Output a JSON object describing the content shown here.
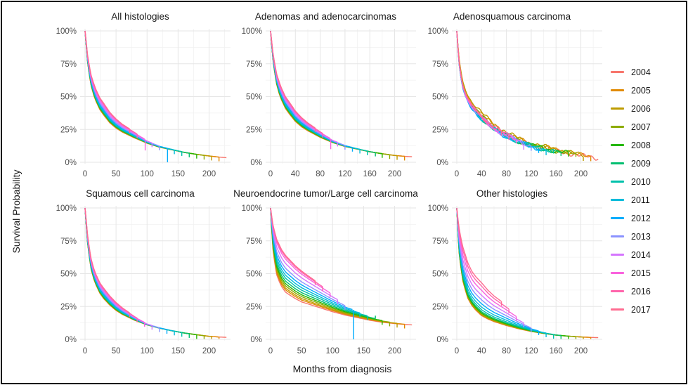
{
  "figure": {
    "ylabel": "Survival Probability",
    "xlabel": "Months from diagnosis",
    "colors": {
      "background": "#ffffff",
      "frame": "#0a0a0a",
      "grid_major": "#e6e6e6",
      "grid_minor": "#f2f2f2",
      "tick_text": "#4d4d4d",
      "title_text": "#1a1a1a"
    }
  },
  "legend": {
    "items": [
      {
        "label": "2004",
        "color": "#F8766D"
      },
      {
        "label": "2005",
        "color": "#E18A00"
      },
      {
        "label": "2006",
        "color": "#BE9C00"
      },
      {
        "label": "2007",
        "color": "#8CAB00"
      },
      {
        "label": "2008",
        "color": "#24B700"
      },
      {
        "label": "2009",
        "color": "#00BE70"
      },
      {
        "label": "2010",
        "color": "#00C1AB"
      },
      {
        "label": "2011",
        "color": "#00BBDA"
      },
      {
        "label": "2012",
        "color": "#00ACFC"
      },
      {
        "label": "2013",
        "color": "#8B93FF"
      },
      {
        "label": "2014",
        "color": "#D575FE"
      },
      {
        "label": "2015",
        "color": "#F962DD"
      },
      {
        "label": "2016",
        "color": "#FF65AC"
      },
      {
        "label": "2017",
        "color": "#FF6C91"
      }
    ]
  },
  "years": [
    2004,
    2005,
    2006,
    2007,
    2008,
    2009,
    2010,
    2011,
    2012,
    2013,
    2014,
    2015,
    2016,
    2017
  ],
  "end_months": [
    228,
    216,
    204,
    192,
    180,
    168,
    156,
    144,
    132,
    120,
    108,
    96,
    84,
    72
  ],
  "chart_data": [
    {
      "type": "line",
      "title": "All histologies",
      "x_ticks": [
        0,
        50,
        100,
        150,
        200
      ],
      "y_ticks": [
        0,
        25,
        50,
        75,
        100
      ],
      "y_tick_labels": [
        "0%",
        "25%",
        "50%",
        "75%",
        "100%"
      ],
      "xlim": [
        0,
        230
      ],
      "ylim": [
        0,
        100
      ],
      "months": [
        0,
        2,
        4,
        7,
        10,
        14,
        18,
        24,
        30,
        40,
        50,
        60,
        80,
        100,
        120,
        140,
        160,
        180,
        200,
        215,
        228
      ],
      "envelope_low": [
        100,
        88,
        77,
        66,
        58,
        51,
        46,
        40,
        36,
        30,
        26,
        23,
        18.5,
        14.5,
        11.5,
        9.5,
        7.5,
        6,
        4.8,
        4,
        3.5
      ],
      "envelope_high": [
        100,
        91,
        82,
        73,
        66,
        60,
        55,
        49,
        45,
        38,
        33,
        29,
        23,
        17,
        13,
        10.5,
        8,
        6.3,
        5,
        4.2,
        3.7
      ],
      "year_weights": [
        0,
        0.03,
        0.06,
        0.1,
        0.14,
        0.19,
        0.25,
        0.33,
        0.42,
        0.55,
        0.68,
        0.82,
        0.93,
        1
      ],
      "noisy": false,
      "drops": [
        {
          "year": 2012,
          "month": 133,
          "to_pct": 0
        },
        {
          "year": 2015,
          "month": 97,
          "to_pct": 9
        }
      ]
    },
    {
      "type": "line",
      "title": "Adenomas and adenocarcinomas",
      "x_ticks": [
        0,
        40,
        80,
        120,
        160,
        200
      ],
      "y_ticks": [
        0,
        25,
        50,
        75,
        100
      ],
      "y_tick_labels": [
        "0%",
        "25%",
        "50%",
        "75%",
        "100%"
      ],
      "xlim": [
        0,
        230
      ],
      "ylim": [
        0,
        100
      ],
      "months": [
        0,
        2,
        4,
        7,
        10,
        14,
        18,
        24,
        30,
        40,
        50,
        60,
        80,
        100,
        120,
        140,
        160,
        180,
        200,
        215,
        228
      ],
      "envelope_low": [
        100,
        88,
        78,
        67,
        59,
        52,
        47,
        41,
        37,
        31,
        27,
        24,
        19,
        15,
        12,
        10,
        8,
        6.5,
        5.2,
        4.6,
        4.2
      ],
      "envelope_high": [
        100,
        91,
        83,
        74,
        67,
        61,
        56,
        50,
        46,
        39,
        34,
        30,
        23.5,
        17.5,
        13.5,
        11,
        8.5,
        6.8,
        5.5,
        4.8,
        4.4
      ],
      "year_weights": [
        0,
        0.03,
        0.06,
        0.1,
        0.15,
        0.2,
        0.26,
        0.34,
        0.44,
        0.56,
        0.7,
        0.83,
        0.93,
        1
      ],
      "noisy": false,
      "drops": [
        {
          "year": 2015,
          "month": 97,
          "to_pct": 10
        },
        {
          "year": 2009,
          "month": 169,
          "to_pct": 4.5
        }
      ]
    },
    {
      "type": "line",
      "title": "Adenosquamous carcinoma",
      "x_ticks": [
        0,
        40,
        80,
        120,
        160,
        200
      ],
      "y_ticks": [
        0,
        25,
        50,
        75,
        100
      ],
      "y_tick_labels": [
        "0%",
        "25%",
        "50%",
        "75%",
        "100%"
      ],
      "xlim": [
        0,
        230
      ],
      "ylim": [
        0,
        100
      ],
      "months": [
        0,
        2,
        4,
        7,
        10,
        14,
        18,
        24,
        30,
        40,
        50,
        60,
        80,
        100,
        120,
        140,
        160,
        180,
        200,
        215,
        228
      ],
      "envelope_low": [
        100,
        85,
        73,
        62,
        55,
        49,
        45,
        40,
        37,
        32,
        28,
        24,
        19,
        15,
        11.5,
        9.5,
        7.5,
        6,
        4.5,
        3.5,
        3
      ],
      "envelope_high": [
        100,
        88,
        78,
        68,
        61,
        55,
        51,
        46,
        43,
        38,
        33,
        29,
        23,
        18,
        14.5,
        12,
        10,
        8,
        5.5,
        4.5,
        3.2
      ],
      "year_weights": [
        0.45,
        0.85,
        1.0,
        0.55,
        0.45,
        0.3,
        0.22,
        0.18,
        0.15,
        0.3,
        0.35,
        0.4,
        0.5,
        0.55
      ],
      "noisy": true,
      "drops": []
    },
    {
      "type": "line",
      "title": "Squamous cell carcinoma",
      "x_ticks": [
        0,
        50,
        100,
        150,
        200
      ],
      "y_ticks": [
        0,
        25,
        50,
        75,
        100
      ],
      "y_tick_labels": [
        "0%",
        "25%",
        "50%",
        "75%",
        "100%"
      ],
      "xlim": [
        0,
        230
      ],
      "ylim": [
        0,
        100
      ],
      "months": [
        0,
        2,
        4,
        7,
        10,
        14,
        18,
        24,
        30,
        40,
        50,
        60,
        80,
        100,
        120,
        140,
        160,
        180,
        200,
        215,
        228
      ],
      "envelope_low": [
        100,
        86,
        74,
        62,
        53,
        46,
        41,
        35,
        31,
        26,
        22,
        19,
        14.5,
        11,
        8.5,
        6.5,
        4.8,
        3.5,
        2.3,
        1.8,
        1.5
      ],
      "envelope_high": [
        100,
        90,
        80,
        69,
        61,
        54,
        49,
        43,
        39,
        33,
        28,
        24,
        17.5,
        12,
        9,
        6.8,
        5,
        3.6,
        2.4,
        1.9,
        1.6
      ],
      "year_weights": [
        0,
        0.03,
        0.06,
        0.1,
        0.14,
        0.19,
        0.25,
        0.33,
        0.43,
        0.55,
        0.69,
        0.82,
        0.93,
        1
      ],
      "noisy": false,
      "drops": []
    },
    {
      "type": "line",
      "title": "Neuroendocrine tumor/Large cell carcinoma",
      "x_ticks": [
        0,
        50,
        100,
        150,
        200
      ],
      "y_ticks": [
        0,
        25,
        50,
        75,
        100
      ],
      "y_tick_labels": [
        "0%",
        "25%",
        "50%",
        "75%",
        "100%"
      ],
      "xlim": [
        0,
        230
      ],
      "ylim": [
        0,
        100
      ],
      "months": [
        0,
        2,
        4,
        7,
        10,
        14,
        18,
        24,
        30,
        40,
        50,
        60,
        80,
        100,
        120,
        140,
        160,
        180,
        200,
        215,
        228
      ],
      "envelope_low": [
        100,
        82,
        68,
        57,
        49,
        44,
        40,
        36,
        34,
        31,
        28.5,
        27,
        24,
        21,
        18.5,
        16.5,
        14.5,
        13,
        12,
        11.4,
        11
      ],
      "envelope_high": [
        100,
        93,
        87,
        81,
        76,
        72,
        68,
        64,
        61,
        56,
        52,
        48.5,
        42,
        35.5,
        29.5,
        25.5,
        22,
        18.5,
        15.5,
        13.5,
        12
      ],
      "year_weights": [
        0,
        0.06,
        0.11,
        0.17,
        0.23,
        0.3,
        0.38,
        0.46,
        0.55,
        0.65,
        0.78,
        0.9,
        0.96,
        1
      ],
      "noisy": false,
      "drops": [
        {
          "year": 2012,
          "month": 134,
          "to_pct": 0
        },
        {
          "year": 2009,
          "month": 169,
          "to_pct": 18
        }
      ]
    },
    {
      "type": "line",
      "title": "Other histologies",
      "x_ticks": [
        0,
        40,
        80,
        120,
        160,
        200
      ],
      "y_ticks": [
        0,
        25,
        50,
        75,
        100
      ],
      "y_tick_labels": [
        "0%",
        "25%",
        "50%",
        "75%",
        "100%"
      ],
      "xlim": [
        0,
        230
      ],
      "ylim": [
        0,
        100
      ],
      "months": [
        0,
        2,
        4,
        7,
        10,
        14,
        18,
        24,
        30,
        40,
        50,
        60,
        80,
        100,
        120,
        140,
        160,
        180,
        200,
        215,
        228
      ],
      "envelope_low": [
        100,
        80,
        65,
        53,
        44,
        37,
        31,
        26,
        22.5,
        18,
        15.5,
        13.5,
        10.5,
        8,
        6,
        4.5,
        3.2,
        2.4,
        1.8,
        1.5,
        1.3
      ],
      "envelope_high": [
        100,
        91,
        84,
        76,
        70,
        64,
        58,
        52,
        48,
        43,
        37.5,
        33,
        26,
        18.5,
        11.5,
        7,
        4.2,
        2.9,
        2.1,
        1.7,
        1.5
      ],
      "year_weights": [
        0,
        0.01,
        0.03,
        0.05,
        0.08,
        0.12,
        0.18,
        0.26,
        0.36,
        0.48,
        0.62,
        0.77,
        0.9,
        1
      ],
      "noisy": false,
      "drops": []
    }
  ]
}
